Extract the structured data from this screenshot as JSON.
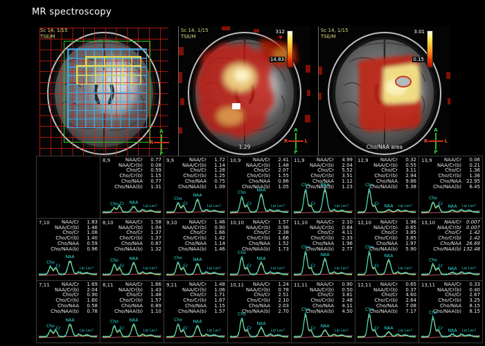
{
  "title": "MR spectroscopy",
  "panels": [
    {
      "name": "voxel-grid-image",
      "scan_label": "Sc 14, 1/15",
      "seq_label": "TSE/M",
      "orientation": {
        "top": "A",
        "bottom": "P",
        "left": "R",
        "right": "L"
      }
    },
    {
      "name": "metabolite-map-image",
      "scan_label": "Sc 14, 1/15",
      "seq_label": "TSE/M",
      "colorbar": {
        "max": "312",
        "min": "14.83"
      },
      "bottom_label": "1.29",
      "orientation": {
        "top": "A",
        "bottom": "P",
        "left": "R",
        "right": "L"
      }
    },
    {
      "name": "cho-naa-map-image",
      "scan_label": "Sc 14, 1/15",
      "seq_label": "TSE/M",
      "colorbar": {
        "max": "3.01",
        "min": "0.15"
      },
      "bottom_label": "Cho/NAA area",
      "orientation": {
        "top": "A",
        "bottom": "P",
        "left": "R",
        "right": "L"
      }
    }
  ],
  "spectra": {
    "metric_labels": [
      "NAA/Cr",
      "NAA/Cr(b)",
      "Cho/Cr",
      "Cho/Cr(b)",
      "Cho/NAA",
      "Cho/NAA(b)"
    ],
    "peak_labels": {
      "cho": "Cho",
      "cr": "Cr",
      "naa": "NAA",
      "lip": "Lip Lac?"
    },
    "cells": [
      {
        "empty": true
      },
      {
        "coord": "8,9",
        "values": [
          "0.77",
          "0.08",
          "0.59",
          "1.15",
          "0.77",
          "1.31"
        ]
      },
      {
        "coord": "9,9",
        "values": [
          "1.72",
          "1.14",
          "1.28",
          "1.25",
          "0.75",
          "1.09"
        ]
      },
      {
        "coord": "10,9",
        "values": [
          "2.41",
          "1.48",
          "2.07",
          "1.55",
          "0.86",
          "1.05"
        ]
      },
      {
        "coord": "11,9",
        "values": [
          "4.99",
          "2.04",
          "5.52",
          "3.51",
          "1.12",
          "1.23"
        ]
      },
      {
        "coord": "12,9",
        "values": [
          "0.32",
          "0.55",
          "3.11",
          "2.94",
          "9.86",
          "5.38"
        ]
      },
      {
        "coord": "13,9",
        "values": [
          "0.06",
          "0.21",
          "1.36",
          "1.36",
          "22.95",
          "6.45"
        ]
      },
      {
        "coord": "7,10",
        "values": [
          "1.83",
          "1.46",
          "1.08",
          "1.40",
          "0.59",
          "0.96"
        ]
      },
      {
        "coord": "8,10",
        "values": [
          "1.58",
          "1.04",
          "1.37",
          "1.37",
          "0.87",
          "1.32"
        ]
      },
      {
        "coord": "9,10",
        "values": [
          "1.46",
          "0.90",
          "1.66",
          "1.42",
          "1.14",
          "1.46"
        ]
      },
      {
        "coord": "10,10",
        "values": [
          "1.57",
          "0.96",
          "2.38",
          "1.66",
          "1.52",
          "1.73"
        ]
      },
      {
        "coord": "11,10",
        "values": [
          "2.10",
          "0.84",
          "4.11",
          "2.33",
          "1.96",
          "2.77"
        ]
      },
      {
        "coord": "12,10",
        "values": [
          "1.96",
          "0.65",
          "3.85",
          "3.85",
          "1.97",
          "5.90"
        ]
      },
      {
        "coord": "13,10",
        "italic": true,
        "values": [
          "0.007",
          "0.007",
          "1.42",
          "1.42",
          "26.69",
          "132.48"
        ]
      },
      {
        "coord": "7,11",
        "values": [
          "1.69",
          "2.04",
          "0.90",
          "1.60",
          "0.58",
          "0.78"
        ]
      },
      {
        "coord": "8,11",
        "values": [
          "1.66",
          "1.43",
          "1.48",
          "1.57",
          "0.89",
          "1.10"
        ]
      },
      {
        "coord": "9,11",
        "values": [
          "1.48",
          "1.06",
          "1.71",
          "1.67",
          "1.15",
          "1.57"
        ]
      },
      {
        "coord": "10,11",
        "values": [
          "1.24",
          "0.78",
          "2.51",
          "2.10",
          "2.03",
          "2.70"
        ]
      },
      {
        "coord": "11,11",
        "values": [
          "0.90",
          "0.50",
          "3.81",
          "2.48",
          "4.11",
          "4.50"
        ]
      },
      {
        "coord": "12,11",
        "values": [
          "0.65",
          "0.37",
          "4.60",
          "2.64",
          "7.08",
          "7.17"
        ]
      },
      {
        "coord": "13,11",
        "values": [
          "0.33",
          "0.40",
          "2.67",
          "3.25",
          "8.15",
          "8.15"
        ]
      }
    ]
  },
  "colors": {
    "grid_red": "#d71c12",
    "voi_green": "#27c827",
    "voxel_cyan": "#3fa8e8",
    "selected_yellow": "#f0d84a",
    "spectrum_cyan": "#2fe3da",
    "fit_yellow": "#ffd840",
    "baseline_pink": "#b4506a",
    "heat_red": "#c41c0c",
    "heat_yellow": "#f8ec8c"
  }
}
